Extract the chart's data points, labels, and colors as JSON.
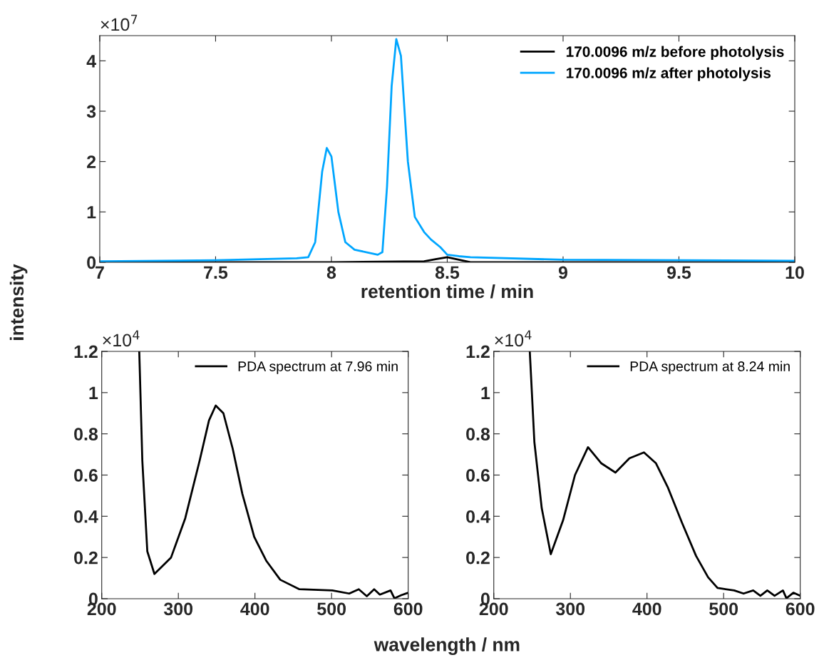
{
  "chart_data": [
    {
      "type": "line",
      "xlabel": "retention time / min",
      "xlim": [
        7,
        10
      ],
      "xticks": [
        7,
        7.5,
        8,
        8.5,
        9,
        9.5,
        10
      ],
      "ylim": [
        0,
        4.5
      ],
      "yticks": [
        0,
        1,
        2,
        3,
        4
      ],
      "legend": "top right",
      "grid": false,
      "annotations": [
        "×10$^{7}$"
      ],
      "series": [
        {
          "name": "170.0096 m/z before photolysis",
          "color": "#000000",
          "x": [
            7,
            7.5,
            8,
            8.4,
            8.45,
            8.5,
            8.55,
            8.6,
            9,
            10
          ],
          "values": [
            0,
            0,
            0,
            0.02,
            0.06,
            0.1,
            0.05,
            0,
            0,
            0
          ]
        },
        {
          "name": "170.0096 m/z after photolysis",
          "color": "#00a6ff",
          "x": [
            7,
            7.5,
            7.85,
            7.9,
            7.93,
            7.96,
            7.98,
            8.0,
            8.03,
            8.06,
            8.1,
            8.2,
            8.22,
            8.24,
            8.26,
            8.28,
            8.3,
            8.33,
            8.36,
            8.4,
            8.43,
            8.47,
            8.5,
            8.55,
            8.6,
            9,
            10
          ],
          "values": [
            0.02,
            0.04,
            0.08,
            0.1,
            0.4,
            1.8,
            2.27,
            2.1,
            1.0,
            0.4,
            0.25,
            0.15,
            0.2,
            1.5,
            3.5,
            4.43,
            4.1,
            2.0,
            0.9,
            0.6,
            0.45,
            0.3,
            0.15,
            0.12,
            0.1,
            0.05,
            0.03
          ]
        }
      ]
    },
    {
      "type": "line",
      "ylabel": "intensity",
      "xlim": [
        200,
        600
      ],
      "xticks": [
        200,
        300,
        400,
        500,
        600
      ],
      "ylim": [
        0,
        1.2
      ],
      "yticks": [
        0,
        0.2,
        0.4,
        0.6,
        0.8,
        1,
        1.2
      ],
      "legend": "top right",
      "grid": false,
      "annotations": [
        "×10$^{4}$"
      ],
      "series": [
        {
          "name": "PDA spectrum at 7.96 min",
          "color": "#000000",
          "x": [
            249,
            253,
            259.5,
            268.8,
            290.5,
            309,
            327.8,
            340,
            348.8,
            358.8,
            371,
            383.6,
            399,
            414.6,
            433,
            458,
            501,
            523,
            535.5,
            546,
            555.6,
            563,
            577,
            582,
            591,
            600
          ],
          "values": [
            1.2,
            0.67,
            0.23,
            0.12,
            0.2,
            0.39,
            0.67,
            0.865,
            0.937,
            0.9,
            0.727,
            0.508,
            0.3,
            0.185,
            0.092,
            0.046,
            0.04,
            0.025,
            0.046,
            0.012,
            0.046,
            0.02,
            0.04,
            0.002,
            0.017,
            0.029
          ]
        }
      ]
    },
    {
      "type": "line",
      "xlabel": "wavelength / nm",
      "xlim": [
        200,
        600
      ],
      "xticks": [
        200,
        300,
        400,
        500,
        600
      ],
      "ylim": [
        0,
        1.2
      ],
      "yticks": [
        0,
        0.2,
        0.4,
        0.6,
        0.8,
        1,
        1.2
      ],
      "legend": "top right",
      "grid": false,
      "annotations": [
        "×10$^{4}$"
      ],
      "series": [
        {
          "name": "PDA spectrum at 8.24 min",
          "color": "#000000",
          "x": [
            247,
            253,
            262.6,
            274.4,
            290.5,
            306,
            323,
            340,
            358.8,
            377,
            396,
            411.5,
            427,
            445.6,
            464,
            479.7,
            492,
            513.8,
            526,
            538.6,
            548,
            557,
            566.5,
            577.4,
            582,
            591,
            600
          ],
          "values": [
            1.2,
            0.76,
            0.439,
            0.216,
            0.381,
            0.6,
            0.735,
            0.658,
            0.612,
            0.681,
            0.71,
            0.658,
            0.542,
            0.369,
            0.208,
            0.104,
            0.052,
            0.04,
            0.025,
            0.04,
            0.014,
            0.04,
            0.014,
            0.04,
            0.002,
            0.029,
            0.014
          ]
        }
      ]
    }
  ]
}
